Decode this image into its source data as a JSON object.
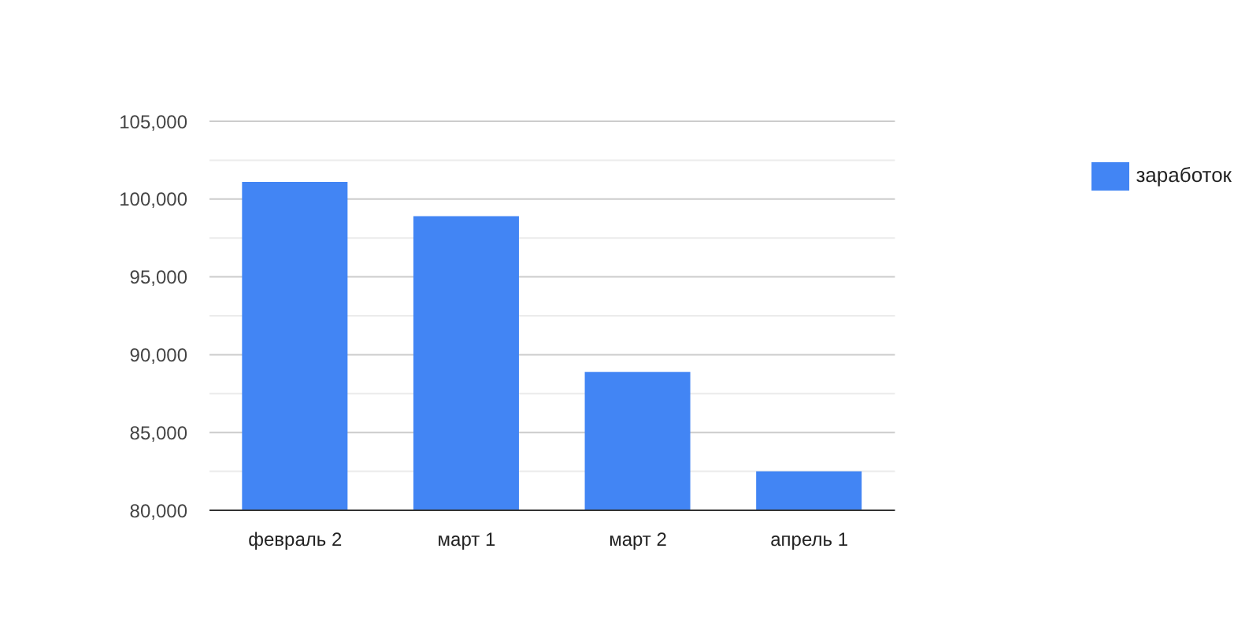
{
  "chart_data": {
    "type": "bar",
    "categories": [
      "февраль 2",
      "март 1",
      "март 2",
      "апрель 1"
    ],
    "series": [
      {
        "name": "заработок",
        "color": "#4285f4",
        "values": [
          101100,
          98900,
          88900,
          82500
        ]
      }
    ],
    "ylim": [
      80000,
      105000
    ],
    "yticks": [
      {
        "value": 80000,
        "label": "80,000"
      },
      {
        "value": 82500,
        "label": null
      },
      {
        "value": 85000,
        "label": "85,000"
      },
      {
        "value": 87500,
        "label": null
      },
      {
        "value": 90000,
        "label": "90,000"
      },
      {
        "value": 92500,
        "label": null
      },
      {
        "value": 95000,
        "label": "95,000"
      },
      {
        "value": 97500,
        "label": null
      },
      {
        "value": 100000,
        "label": "100,000"
      },
      {
        "value": 102500,
        "label": null
      },
      {
        "value": 105000,
        "label": "105,000"
      }
    ],
    "grid": "y",
    "legend": "right"
  }
}
